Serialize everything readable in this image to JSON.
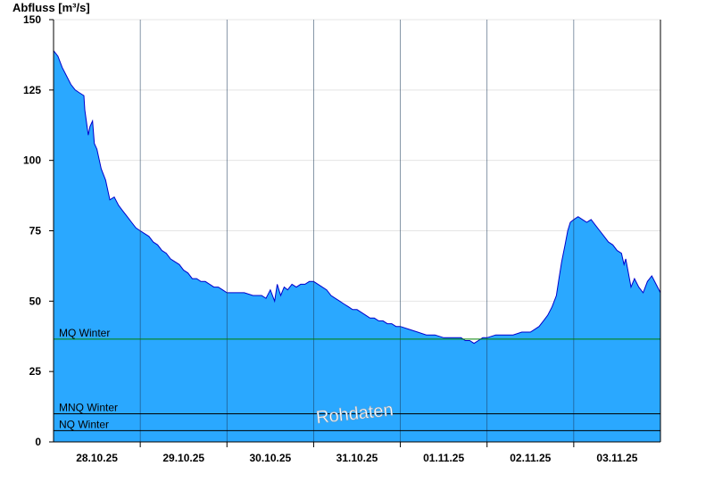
{
  "chart_data": {
    "type": "area",
    "ylabel": "Abfluss [m³/s]",
    "xlabel": "",
    "title": "",
    "ylim": [
      0,
      150
    ],
    "yticks": [
      0,
      25,
      50,
      75,
      100,
      125,
      150
    ],
    "x_range_days": [
      0,
      7
    ],
    "x_ticks": [
      {
        "label": "28.10.25",
        "day": 0.5
      },
      {
        "label": "29.10.25",
        "day": 1.5
      },
      {
        "label": "30.10.25",
        "day": 2.5
      },
      {
        "label": "31.10.25",
        "day": 3.5
      },
      {
        "label": "01.11.25",
        "day": 4.5
      },
      {
        "label": "02.11.25",
        "day": 5.5
      },
      {
        "label": "03.11.25",
        "day": 6.5
      }
    ],
    "day_separators": [
      1,
      2,
      3,
      4,
      5,
      6
    ],
    "series": [
      {
        "fill_color": "#2aa8ff",
        "line_color": "#0000cc",
        "points": [
          [
            0.0,
            139
          ],
          [
            0.05,
            137
          ],
          [
            0.1,
            133
          ],
          [
            0.15,
            130
          ],
          [
            0.2,
            127
          ],
          [
            0.25,
            125
          ],
          [
            0.3,
            124
          ],
          [
            0.35,
            123
          ],
          [
            0.36,
            118
          ],
          [
            0.4,
            109
          ],
          [
            0.42,
            112
          ],
          [
            0.45,
            114
          ],
          [
            0.47,
            106
          ],
          [
            0.5,
            104
          ],
          [
            0.55,
            97
          ],
          [
            0.6,
            93
          ],
          [
            0.65,
            86
          ],
          [
            0.7,
            87
          ],
          [
            0.75,
            84
          ],
          [
            0.8,
            82
          ],
          [
            0.85,
            80
          ],
          [
            0.9,
            78
          ],
          [
            0.95,
            76
          ],
          [
            1.0,
            75
          ],
          [
            1.05,
            74
          ],
          [
            1.1,
            73
          ],
          [
            1.15,
            71
          ],
          [
            1.2,
            70
          ],
          [
            1.25,
            68
          ],
          [
            1.3,
            67
          ],
          [
            1.35,
            65
          ],
          [
            1.4,
            64
          ],
          [
            1.45,
            63
          ],
          [
            1.5,
            61
          ],
          [
            1.55,
            60
          ],
          [
            1.6,
            58
          ],
          [
            1.65,
            58
          ],
          [
            1.7,
            57
          ],
          [
            1.75,
            57
          ],
          [
            1.8,
            56
          ],
          [
            1.85,
            55
          ],
          [
            1.9,
            55
          ],
          [
            1.95,
            54
          ],
          [
            2.0,
            53
          ],
          [
            2.1,
            53
          ],
          [
            2.2,
            53
          ],
          [
            2.3,
            52
          ],
          [
            2.4,
            52
          ],
          [
            2.45,
            51
          ],
          [
            2.5,
            54
          ],
          [
            2.55,
            50
          ],
          [
            2.58,
            56
          ],
          [
            2.62,
            52
          ],
          [
            2.66,
            55
          ],
          [
            2.7,
            54
          ],
          [
            2.75,
            56
          ],
          [
            2.8,
            55
          ],
          [
            2.85,
            56
          ],
          [
            2.9,
            56
          ],
          [
            2.95,
            57
          ],
          [
            3.0,
            57
          ],
          [
            3.05,
            56
          ],
          [
            3.1,
            55
          ],
          [
            3.15,
            54
          ],
          [
            3.2,
            52
          ],
          [
            3.25,
            51
          ],
          [
            3.3,
            50
          ],
          [
            3.35,
            49
          ],
          [
            3.4,
            48
          ],
          [
            3.45,
            47
          ],
          [
            3.5,
            47
          ],
          [
            3.55,
            46
          ],
          [
            3.6,
            45
          ],
          [
            3.65,
            44
          ],
          [
            3.7,
            44
          ],
          [
            3.75,
            43
          ],
          [
            3.8,
            43
          ],
          [
            3.85,
            42
          ],
          [
            3.9,
            42
          ],
          [
            3.95,
            41
          ],
          [
            4.0,
            41
          ],
          [
            4.1,
            40
          ],
          [
            4.2,
            39
          ],
          [
            4.3,
            38
          ],
          [
            4.4,
            38
          ],
          [
            4.5,
            37
          ],
          [
            4.6,
            37
          ],
          [
            4.7,
            37
          ],
          [
            4.75,
            36
          ],
          [
            4.8,
            36
          ],
          [
            4.85,
            35
          ],
          [
            4.9,
            36
          ],
          [
            4.95,
            37
          ],
          [
            5.0,
            37
          ],
          [
            5.1,
            38
          ],
          [
            5.2,
            38
          ],
          [
            5.3,
            38
          ],
          [
            5.4,
            39
          ],
          [
            5.5,
            39
          ],
          [
            5.55,
            40
          ],
          [
            5.6,
            41
          ],
          [
            5.65,
            43
          ],
          [
            5.7,
            45
          ],
          [
            5.75,
            48
          ],
          [
            5.8,
            52
          ],
          [
            5.83,
            58
          ],
          [
            5.86,
            64
          ],
          [
            5.9,
            70
          ],
          [
            5.93,
            75
          ],
          [
            5.96,
            78
          ],
          [
            6.0,
            79
          ],
          [
            6.05,
            80
          ],
          [
            6.1,
            79
          ],
          [
            6.15,
            78
          ],
          [
            6.2,
            79
          ],
          [
            6.25,
            77
          ],
          [
            6.3,
            75
          ],
          [
            6.35,
            73
          ],
          [
            6.4,
            71
          ],
          [
            6.45,
            70
          ],
          [
            6.5,
            68
          ],
          [
            6.55,
            67
          ],
          [
            6.58,
            63
          ],
          [
            6.6,
            65
          ],
          [
            6.63,
            60
          ],
          [
            6.66,
            55
          ],
          [
            6.7,
            58
          ],
          [
            6.75,
            55
          ],
          [
            6.8,
            53
          ],
          [
            6.85,
            57
          ],
          [
            6.9,
            59
          ],
          [
            6.95,
            56
          ],
          [
            7.0,
            53
          ]
        ]
      }
    ],
    "reference_lines": [
      {
        "label": "MQ Winter",
        "value": 36.5,
        "color": "#008000"
      },
      {
        "label": "MNQ Winter",
        "value": 10,
        "color": "#000000"
      },
      {
        "label": "NQ Winter",
        "value": 4,
        "color": "#000000"
      }
    ],
    "watermark": "Rohdaten",
    "grid": true
  }
}
